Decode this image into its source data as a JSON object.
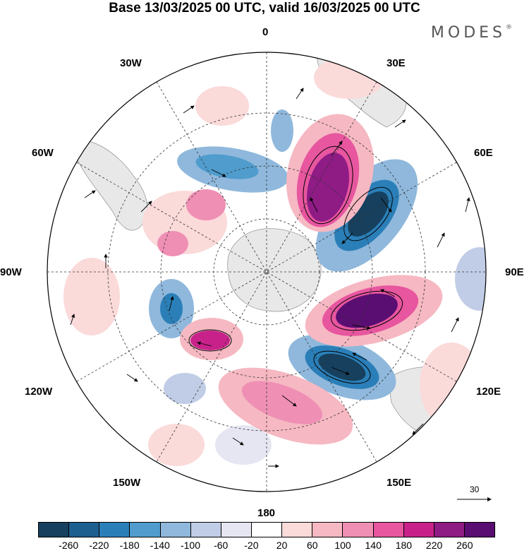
{
  "header": {
    "title": "Base 13/03/2025 00 UTC, valid 16/03/2025 00 UTC",
    "brand": "MODES",
    "brand_mark": "®"
  },
  "map": {
    "projection": "south-polar-stereographic",
    "longitude_labels": {
      "lon_0": "0",
      "lon_30e": "30E",
      "lon_60e": "60E",
      "lon_90e": "90E",
      "lon_120e": "120E",
      "lon_150e": "150E",
      "lon_180": "180",
      "lon_150w": "150W",
      "lon_120w": "120W",
      "lon_90w": "90W",
      "lon_60w": "60W",
      "lon_30w": "30W"
    },
    "vector_scale_label": "30"
  },
  "colorbar": {
    "colors": [
      "#16405e",
      "#1d5f8f",
      "#2b7fb8",
      "#4f9ccd",
      "#8fb8dc",
      "#c1cde6",
      "#e6e6f2",
      "#ffffff",
      "#fbdada",
      "#f6b8c2",
      "#ef8fb4",
      "#e7569f",
      "#c8228a",
      "#8f1b85",
      "#5a0e72"
    ],
    "ticks": [
      "-260",
      "-220",
      "-180",
      "-140",
      "-100",
      "-60",
      "-20",
      "20",
      "60",
      "100",
      "140",
      "180",
      "220",
      "260"
    ]
  }
}
